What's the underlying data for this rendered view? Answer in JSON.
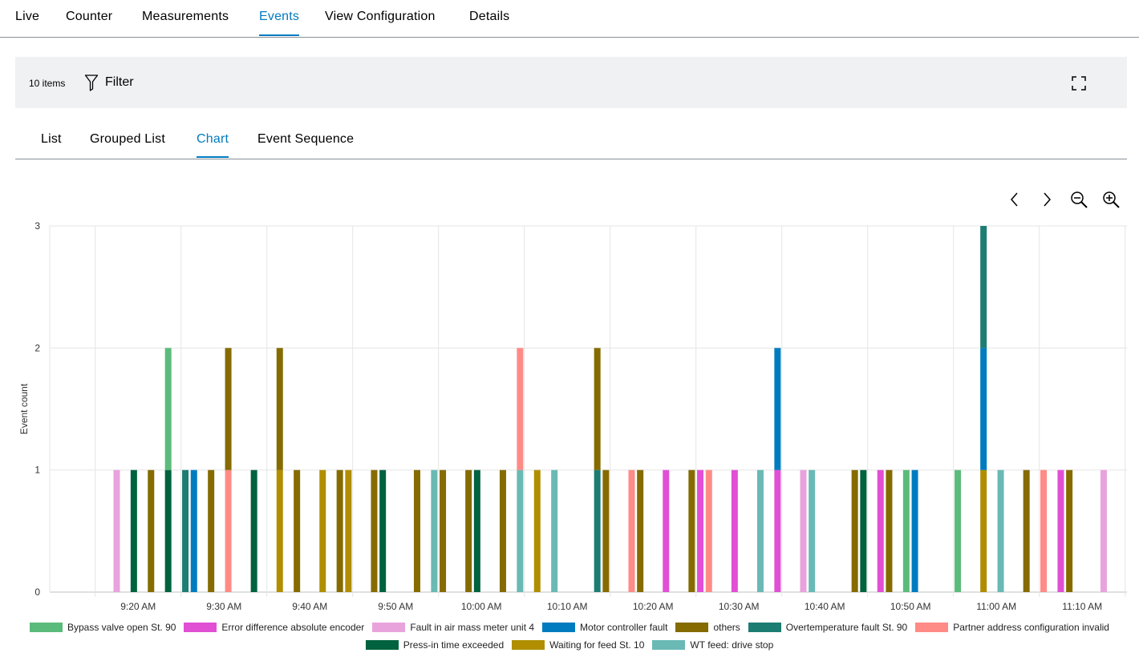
{
  "nav": {
    "tabs": [
      {
        "label": "Live"
      },
      {
        "label": "Counter"
      },
      {
        "label": "Measurements"
      },
      {
        "label": "Events",
        "active": true
      },
      {
        "label": "View Configuration"
      },
      {
        "label": "Details"
      }
    ]
  },
  "toolbar": {
    "items_count": "10 items",
    "filter_label": "Filter",
    "icons": {
      "filter": "filter-icon",
      "fullscreen": "fullscreen-icon"
    }
  },
  "subnav": {
    "tabs": [
      {
        "label": "List"
      },
      {
        "label": "Grouped List"
      },
      {
        "label": "Chart",
        "active": true
      },
      {
        "label": "Event Sequence"
      }
    ]
  },
  "chart_controls": {
    "icons": [
      "chevron-left-icon",
      "chevron-right-icon",
      "zoom-out-icon",
      "zoom-in-icon"
    ]
  },
  "chart_data": {
    "type": "bar",
    "stacked": true,
    "ylabel": "Event count",
    "ylim": [
      0,
      3
    ],
    "yticks": [
      "0",
      "1",
      "2",
      "3"
    ],
    "grid": true,
    "legend_position": "bottom",
    "x_range_minutes": [
      9.7,
      123.5
    ],
    "xticks": [
      {
        "label": "9:20 AM",
        "m": 20
      },
      {
        "label": "9:30 AM",
        "m": 30
      },
      {
        "label": "9:40 AM",
        "m": 40
      },
      {
        "label": "9:50 AM",
        "m": 50
      },
      {
        "label": "10:00 AM",
        "m": 60
      },
      {
        "label": "10:10 AM",
        "m": 70
      },
      {
        "label": "10:20 AM",
        "m": 80
      },
      {
        "label": "10:30 AM",
        "m": 90
      },
      {
        "label": "10:40 AM",
        "m": 100
      },
      {
        "label": "10:50 AM",
        "m": 110
      },
      {
        "label": "11:00 AM",
        "m": 120
      },
      {
        "label": "11:10 AM",
        "m": 130
      }
    ],
    "series": [
      {
        "name": "Bypass valve open St. 90",
        "color": "#5bbb7b"
      },
      {
        "name": "Error difference absolute encoder",
        "color": "#e14fd5"
      },
      {
        "name": "Fault in air mass meter unit 4",
        "color": "#e8a3dd"
      },
      {
        "name": "Motor controller fault",
        "color": "#007bc0"
      },
      {
        "name": "others",
        "color": "#856b00"
      },
      {
        "name": "Overtemperature fault St. 90",
        "color": "#1c7d73"
      },
      {
        "name": "Partner address configuration invalid",
        "color": "#ff8b86"
      },
      {
        "name": "Press-in time exceeded",
        "color": "#00623e"
      },
      {
        "name": "Waiting for feed St. 10",
        "color": "#b08e00"
      },
      {
        "name": "WT feed: drive stop",
        "color": "#6ab9b5"
      }
    ],
    "bars": [
      {
        "m": 17.5,
        "stack": [
          {
            "s": 2,
            "v": 1
          }
        ]
      },
      {
        "m": 19.5,
        "stack": [
          {
            "s": 7,
            "v": 1
          }
        ]
      },
      {
        "m": 21.5,
        "stack": [
          {
            "s": 4,
            "v": 1
          }
        ]
      },
      {
        "m": 23.5,
        "stack": [
          {
            "s": 7,
            "v": 1
          },
          {
            "s": 0,
            "v": 1
          }
        ]
      },
      {
        "m": 25.5,
        "stack": [
          {
            "s": 5,
            "v": 1
          }
        ]
      },
      {
        "m": 26.5,
        "stack": [
          {
            "s": 3,
            "v": 1
          }
        ]
      },
      {
        "m": 28.5,
        "stack": [
          {
            "s": 4,
            "v": 1
          }
        ]
      },
      {
        "m": 30.5,
        "stack": [
          {
            "s": 6,
            "v": 1
          },
          {
            "s": 4,
            "v": 1
          }
        ]
      },
      {
        "m": 33.5,
        "stack": [
          {
            "s": 7,
            "v": 1
          }
        ]
      },
      {
        "m": 36.5,
        "stack": [
          {
            "s": 8,
            "v": 1
          },
          {
            "s": 4,
            "v": 1
          }
        ]
      },
      {
        "m": 38.5,
        "stack": [
          {
            "s": 4,
            "v": 1
          }
        ]
      },
      {
        "m": 41.5,
        "stack": [
          {
            "s": 8,
            "v": 1
          }
        ]
      },
      {
        "m": 43.5,
        "stack": [
          {
            "s": 4,
            "v": 1
          }
        ]
      },
      {
        "m": 44.5,
        "stack": [
          {
            "s": 8,
            "v": 1
          }
        ]
      },
      {
        "m": 47.5,
        "stack": [
          {
            "s": 4,
            "v": 1
          }
        ]
      },
      {
        "m": 48.5,
        "stack": [
          {
            "s": 7,
            "v": 1
          }
        ]
      },
      {
        "m": 52.5,
        "stack": [
          {
            "s": 4,
            "v": 1
          }
        ]
      },
      {
        "m": 54.5,
        "stack": [
          {
            "s": 9,
            "v": 1
          }
        ]
      },
      {
        "m": 55.5,
        "stack": [
          {
            "s": 4,
            "v": 1
          }
        ]
      },
      {
        "m": 58.5,
        "stack": [
          {
            "s": 4,
            "v": 1
          }
        ]
      },
      {
        "m": 59.5,
        "stack": [
          {
            "s": 7,
            "v": 1
          }
        ]
      },
      {
        "m": 62.5,
        "stack": [
          {
            "s": 4,
            "v": 1
          }
        ]
      },
      {
        "m": 64.5,
        "stack": [
          {
            "s": 9,
            "v": 1
          },
          {
            "s": 6,
            "v": 1
          }
        ]
      },
      {
        "m": 66.5,
        "stack": [
          {
            "s": 8,
            "v": 1
          }
        ]
      },
      {
        "m": 68.5,
        "stack": [
          {
            "s": 9,
            "v": 1
          }
        ]
      },
      {
        "m": 73.5,
        "stack": [
          {
            "s": 5,
            "v": 1
          },
          {
            "s": 4,
            "v": 1
          }
        ]
      },
      {
        "m": 74.5,
        "stack": [
          {
            "s": 4,
            "v": 1
          }
        ]
      },
      {
        "m": 77.5,
        "stack": [
          {
            "s": 6,
            "v": 1
          }
        ]
      },
      {
        "m": 78.5,
        "stack": [
          {
            "s": 4,
            "v": 1
          }
        ]
      },
      {
        "m": 81.5,
        "stack": [
          {
            "s": 1,
            "v": 1
          }
        ]
      },
      {
        "m": 84.5,
        "stack": [
          {
            "s": 4,
            "v": 1
          }
        ]
      },
      {
        "m": 85.5,
        "stack": [
          {
            "s": 1,
            "v": 1
          }
        ]
      },
      {
        "m": 86.5,
        "stack": [
          {
            "s": 6,
            "v": 1
          }
        ]
      },
      {
        "m": 89.5,
        "stack": [
          {
            "s": 1,
            "v": 1
          }
        ]
      },
      {
        "m": 92.5,
        "stack": [
          {
            "s": 9,
            "v": 1
          }
        ]
      },
      {
        "m": 94.5,
        "stack": [
          {
            "s": 1,
            "v": 1
          },
          {
            "s": 3,
            "v": 1
          }
        ]
      },
      {
        "m": 97.5,
        "stack": [
          {
            "s": 2,
            "v": 1
          }
        ]
      },
      {
        "m": 98.5,
        "stack": [
          {
            "s": 9,
            "v": 1
          }
        ]
      },
      {
        "m": 103.5,
        "stack": [
          {
            "s": 4,
            "v": 1
          }
        ]
      },
      {
        "m": 104.5,
        "stack": [
          {
            "s": 7,
            "v": 1
          }
        ]
      },
      {
        "m": 106.5,
        "stack": [
          {
            "s": 1,
            "v": 1
          }
        ]
      },
      {
        "m": 107.5,
        "stack": [
          {
            "s": 4,
            "v": 1
          }
        ]
      },
      {
        "m": 109.5,
        "stack": [
          {
            "s": 0,
            "v": 1
          }
        ]
      },
      {
        "m": 110.5,
        "stack": [
          {
            "s": 3,
            "v": 1
          }
        ]
      },
      {
        "m": 115.5,
        "stack": [
          {
            "s": 0,
            "v": 1
          }
        ]
      },
      {
        "m": 118.5,
        "stack": [
          {
            "s": 8,
            "v": 1
          },
          {
            "s": 3,
            "v": 1
          },
          {
            "s": 5,
            "v": 1
          }
        ]
      },
      {
        "m": 120.5,
        "stack": [
          {
            "s": 9,
            "v": 1
          }
        ]
      },
      {
        "m": 123.5,
        "stack": [
          {
            "s": 4,
            "v": 1
          }
        ]
      },
      {
        "m": 125.5,
        "stack": [
          {
            "s": 6,
            "v": 1
          }
        ]
      },
      {
        "m": 127.5,
        "stack": [
          {
            "s": 1,
            "v": 1
          }
        ]
      },
      {
        "m": 128.5,
        "stack": [
          {
            "s": 4,
            "v": 1
          }
        ]
      },
      {
        "m": 132.5,
        "stack": [
          {
            "s": 2,
            "v": 1
          }
        ]
      }
    ]
  }
}
